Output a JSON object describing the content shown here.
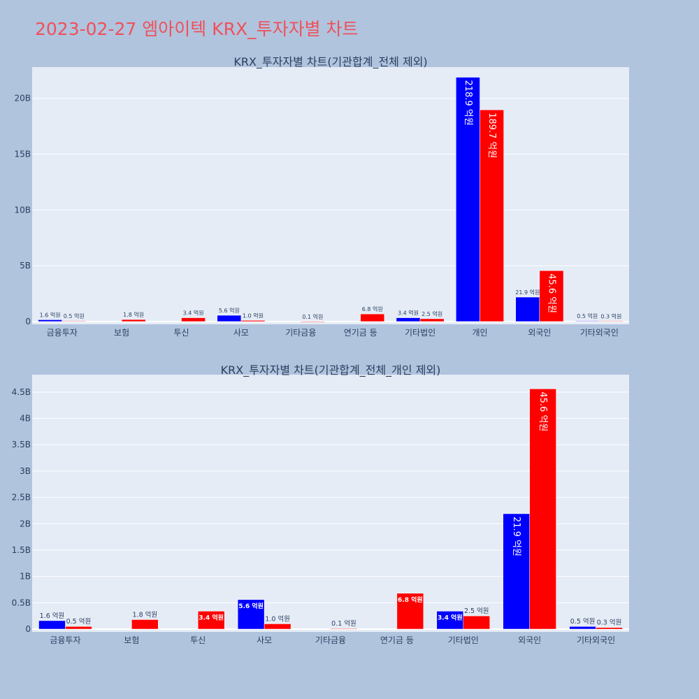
{
  "page": {
    "title": "2023-02-27 엠아이텍 KRX_투자자별 차트"
  },
  "colors": {
    "buy": "#0000ff",
    "sell": "#ff0000",
    "plot_bg": "#e5ecf6",
    "page_bg": "#b0c4de",
    "title": "#f0505a"
  },
  "chart_data": [
    {
      "type": "bar",
      "title": "KRX_투자자별 차트(기관합계_전체 제외)",
      "categories": [
        "금융투자",
        "보험",
        "투신",
        "사모",
        "기타금융",
        "연기금 등",
        "기타법인",
        "개인",
        "외국인",
        "기타외국인"
      ],
      "yticks": [
        "0",
        "5B",
        "10B",
        "15B",
        "20B"
      ],
      "ylim": [
        0,
        22800000000
      ],
      "grid": true,
      "series": [
        {
          "values": [
            160000000,
            0,
            0,
            560000000,
            0,
            0,
            340000000,
            21890000000,
            2190000000,
            50000000
          ],
          "labels": [
            "1.6 억원",
            "",
            "",
            "5.6 억원",
            "",
            "",
            "3.4 억원",
            "218.9 억원",
            "21.9 억원",
            "0.5 억원"
          ]
        },
        {
          "values": [
            50000000,
            180000000,
            340000000,
            100000000,
            10000000,
            680000000,
            250000000,
            18970000000,
            4560000000,
            30000000
          ],
          "labels": [
            "0.5 억원",
            "1.8 억원",
            "3.4 억원",
            "1.0 억원",
            "0.1 억원",
            "6.8 억원",
            "2.5 억원",
            "189.7 억원",
            "45.6 억원",
            "0.3 억원"
          ]
        }
      ]
    },
    {
      "type": "bar",
      "title": "KRX_투자자별 차트(기관합계_전체_개인 제외)",
      "categories": [
        "금융투자",
        "보험",
        "투신",
        "사모",
        "기타금융",
        "연기금 등",
        "기타법인",
        "외국인",
        "기타외국인"
      ],
      "yticks": [
        "0",
        "0.5B",
        "1B",
        "1.5B",
        "2B",
        "2.5B",
        "3B",
        "3.5B",
        "4B",
        "4.5B"
      ],
      "ylim": [
        0,
        4830000000
      ],
      "grid": true,
      "series": [
        {
          "values": [
            160000000,
            0,
            0,
            560000000,
            0,
            0,
            340000000,
            2190000000,
            50000000
          ],
          "labels": [
            "1.6 억원",
            "",
            "",
            "5.6 억원",
            "",
            "",
            "3.4 억원",
            "21.9 억원",
            "0.5 억원"
          ]
        },
        {
          "values": [
            50000000,
            180000000,
            340000000,
            100000000,
            10000000,
            680000000,
            250000000,
            4560000000,
            30000000
          ],
          "labels": [
            "0.5 억원",
            "1.8 억원",
            "3.4 억원",
            "1.0 억원",
            "0.1 억원",
            "6.8 억원",
            "2.5 억원",
            "45.6 억원",
            "0.3 억원"
          ]
        }
      ]
    }
  ]
}
